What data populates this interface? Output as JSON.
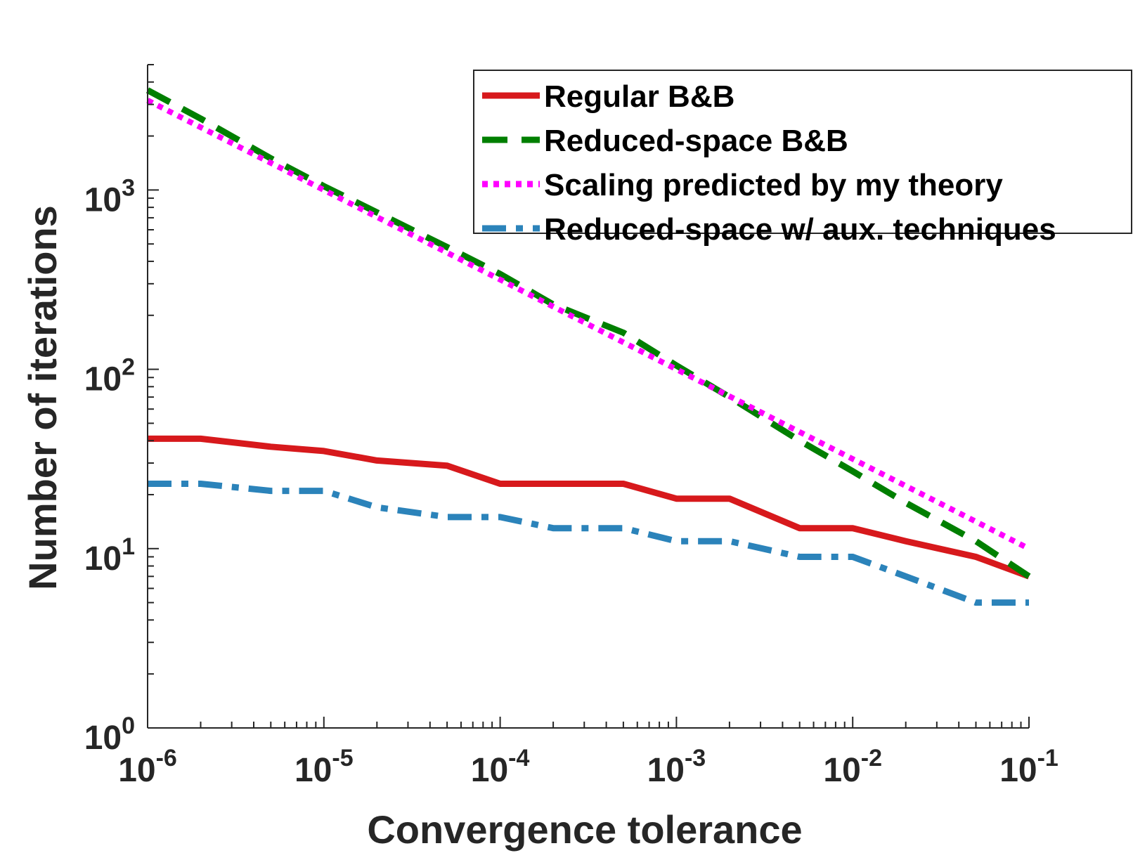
{
  "chart_data": {
    "type": "line",
    "xlabel": "Convergence tolerance",
    "ylabel": "Number of iterations",
    "xscale": "log",
    "yscale": "log",
    "xlim": [
      1e-06,
      0.1
    ],
    "ylim": [
      1,
      5000
    ],
    "grid": false,
    "legend_position": "top-right",
    "x_ticks": [
      {
        "value": 1e-06,
        "base": "10",
        "exp": "-6"
      },
      {
        "value": 1e-05,
        "base": "10",
        "exp": "-5"
      },
      {
        "value": 0.0001,
        "base": "10",
        "exp": "-4"
      },
      {
        "value": 0.001,
        "base": "10",
        "exp": "-3"
      },
      {
        "value": 0.01,
        "base": "10",
        "exp": "-2"
      },
      {
        "value": 0.1,
        "base": "10",
        "exp": "-1"
      }
    ],
    "y_ticks": [
      {
        "value": 1,
        "base": "10",
        "exp": "0"
      },
      {
        "value": 10,
        "base": "10",
        "exp": "1"
      },
      {
        "value": 100,
        "base": "10",
        "exp": "2"
      },
      {
        "value": 1000,
        "base": "10",
        "exp": "3"
      }
    ],
    "series": [
      {
        "name": "Regular B&B",
        "color": "#d7191c",
        "style": "solid",
        "x": [
          1e-06,
          2e-06,
          5e-06,
          1e-05,
          2e-05,
          5e-05,
          0.0001,
          0.0002,
          0.0005,
          0.001,
          0.002,
          0.005,
          0.01,
          0.02,
          0.05,
          0.1
        ],
        "y": [
          41,
          41,
          37,
          35,
          31,
          29,
          23,
          23,
          23,
          19,
          19,
          13,
          13,
          11,
          9,
          7
        ]
      },
      {
        "name": "Reduced-space B&B",
        "color": "#007f00",
        "style": "dashed",
        "x": [
          1e-06,
          2e-06,
          5e-06,
          1e-05,
          2e-05,
          5e-05,
          0.0001,
          0.0002,
          0.0005,
          0.001,
          0.002,
          0.005,
          0.01,
          0.02,
          0.05,
          0.1
        ],
        "y": [
          3600,
          2500,
          1500,
          1050,
          750,
          480,
          340,
          230,
          160,
          105,
          70,
          40,
          27,
          18,
          11,
          7
        ]
      },
      {
        "name": "Scaling predicted by my theory",
        "color": "#ff00ff",
        "style": "dotted",
        "x": [
          1e-06,
          0.1
        ],
        "y": [
          3162,
          10
        ]
      },
      {
        "name": "Reduced-space w/ aux. techniques",
        "color": "#2b83ba",
        "style": "dashdot",
        "x": [
          1e-06,
          2e-06,
          5e-06,
          1e-05,
          2e-05,
          5e-05,
          0.0001,
          0.0002,
          0.0005,
          0.001,
          0.002,
          0.005,
          0.01,
          0.02,
          0.05,
          0.1
        ],
        "y": [
          23,
          23,
          21,
          21,
          17,
          15,
          15,
          13,
          13,
          11,
          11,
          9,
          9,
          7,
          5,
          5
        ]
      }
    ]
  }
}
